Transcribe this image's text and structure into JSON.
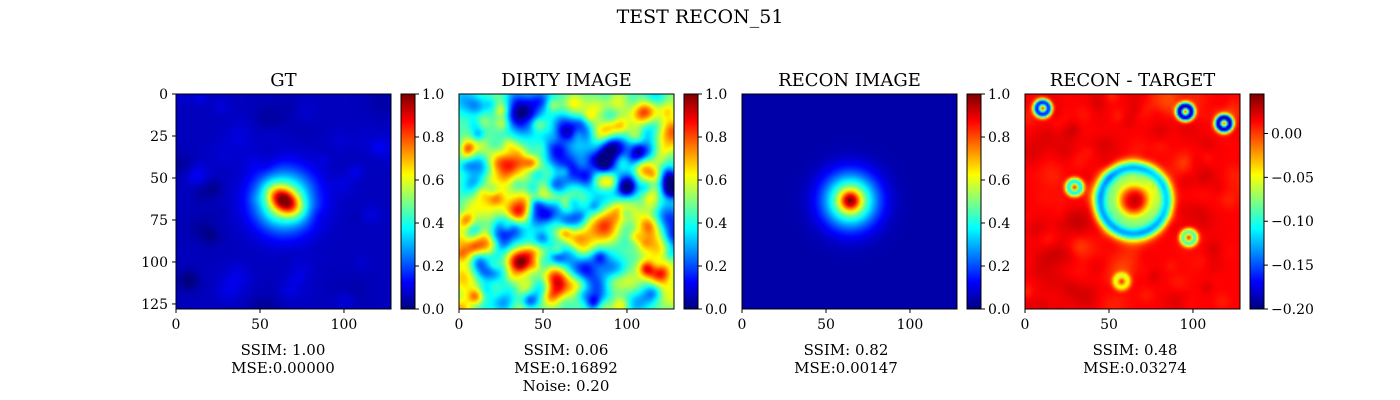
{
  "figure": {
    "suptitle": "TEST RECON_51"
  },
  "chart_data": [
    {
      "type": "heatmap",
      "title": "GT",
      "image": "gt",
      "xticks": [
        0,
        50,
        100
      ],
      "yticks": [
        0,
        25,
        50,
        75,
        100,
        125
      ],
      "xlim": [
        0,
        127
      ],
      "ylim": [
        127,
        0
      ],
      "colorbar": {
        "range": [
          0.0,
          1.0
        ],
        "ticks": [
          "0.0",
          "0.2",
          "0.4",
          "0.6",
          "0.8",
          "1.0"
        ],
        "colormap": "jet"
      },
      "caption": [
        "SSIM: 1.00",
        "MSE:0.00000"
      ]
    },
    {
      "type": "heatmap",
      "title": "DIRTY IMAGE",
      "image": "dirty",
      "xticks": [
        0,
        50,
        100
      ],
      "xlim": [
        0,
        127
      ],
      "colorbar": {
        "range": [
          0.0,
          1.0
        ],
        "ticks": [
          "0.0",
          "0.2",
          "0.4",
          "0.6",
          "0.8",
          "1.0"
        ],
        "colormap": "jet"
      },
      "caption": [
        "SSIM: 0.06",
        "MSE:0.16892",
        "Noise: 0.20"
      ]
    },
    {
      "type": "heatmap",
      "title": "RECON IMAGE",
      "image": "recon",
      "xticks": [
        0,
        50,
        100
      ],
      "xlim": [
        0,
        127
      ],
      "colorbar": {
        "range": [
          0.0,
          1.0
        ],
        "ticks": [
          "0.0",
          "0.2",
          "0.4",
          "0.6",
          "0.8",
          "1.0"
        ],
        "colormap": "jet"
      },
      "caption": [
        "SSIM: 0.82",
        "MSE:0.00147"
      ]
    },
    {
      "type": "heatmap",
      "title": "RECON - TARGET",
      "image": "diff",
      "xticks": [
        0,
        50,
        100
      ],
      "xlim": [
        0,
        127
      ],
      "colorbar": {
        "range": [
          -0.2,
          0.045
        ],
        "ticks": [
          "0.00",
          "−0.05",
          "−0.10",
          "−0.15",
          "−0.20"
        ],
        "tick_values": [
          0.0,
          -0.05,
          -0.1,
          -0.15,
          -0.2
        ],
        "colormap": "jet"
      },
      "caption": [
        "SSIM: 0.48",
        "MSE:0.03274"
      ]
    }
  ]
}
